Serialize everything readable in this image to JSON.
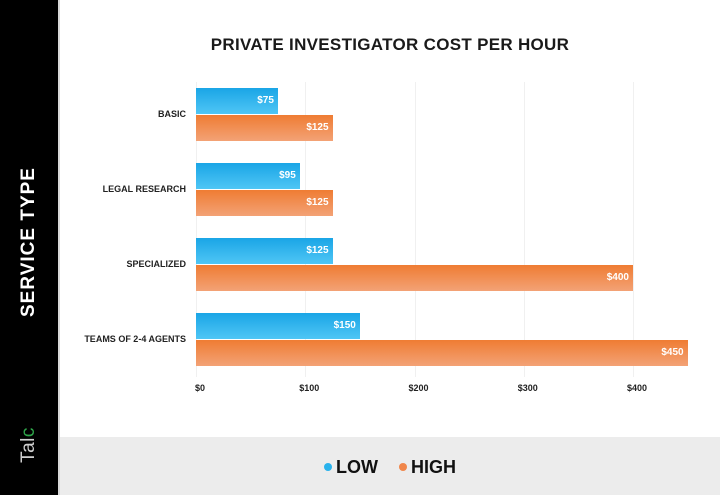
{
  "chart_data": {
    "type": "bar",
    "orientation": "horizontal",
    "title": "PRIVATE INVESTIGATOR COST PER HOUR",
    "xlabel": "",
    "ylabel": "SERVICE TYPE",
    "categories": [
      "BASIC",
      "LEGAL RESEARCH",
      "SPECIALIZED",
      "TEAMS OF 2-4 AGENTS"
    ],
    "series": [
      {
        "name": "LOW",
        "color": "#29b2ec",
        "values": [
          75,
          95,
          125,
          150
        ],
        "labels": [
          "$75",
          "$95",
          "$125",
          "$150"
        ]
      },
      {
        "name": "HIGH",
        "color": "#f0864a",
        "values": [
          125,
          125,
          400,
          450
        ],
        "labels": [
          "$125",
          "$125",
          "$400",
          "$450"
        ]
      }
    ],
    "xlim": [
      0,
      450
    ],
    "x_ticks": [
      "$0",
      "$100",
      "$200",
      "$300",
      "$400"
    ],
    "grid": true,
    "legend_position": "bottom"
  },
  "sidebar": {
    "axis_title": "SERVICE TYPE",
    "logo_text": "Tal",
    "logo_dot": "c"
  },
  "legend": {
    "items": [
      {
        "label": "LOW",
        "color": "#29b2ec"
      },
      {
        "label": "HIGH",
        "color": "#f0864a"
      }
    ]
  }
}
